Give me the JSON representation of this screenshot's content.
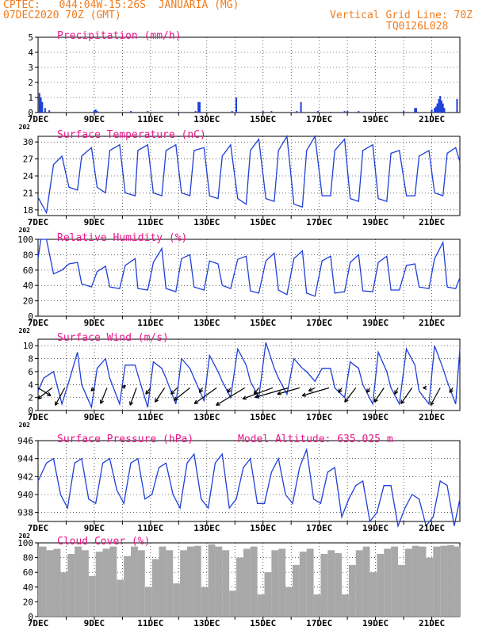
{
  "header": {
    "line1": "CPTEC:   044:04W-15:26S  JANUARIA (MG)",
    "line2": "07DEC2020 70Z (GMT)",
    "grid_note": "Vertical Grid Line: 70Z",
    "run_code": "TQ0126L028"
  },
  "colors": {
    "header": "#f07c1e",
    "panel_title": "#e8178a",
    "series": "#1f3fd8",
    "cloud": "#a8a8a8",
    "vector": "#000000"
  },
  "x_axis": {
    "first_day": 7,
    "last_day": 22,
    "tick_labels": [
      "7DEC",
      "9DEC",
      "11DEC",
      "13DEC",
      "15DEC",
      "17DEC",
      "19DEC",
      "21DEC"
    ],
    "tick_days": [
      7,
      9,
      11,
      13,
      15,
      17,
      19,
      21
    ],
    "year_fragment": "202"
  },
  "model_altitude": "Model Altitude: 635.025 m",
  "chart_data": [
    {
      "type": "bar",
      "title": "Precipitation (mm/h)",
      "yticks": [
        0,
        1,
        2,
        3,
        4,
        5
      ],
      "ylim": [
        0,
        5
      ],
      "points": [
        [
          7.05,
          1.3
        ],
        [
          7.1,
          1.0
        ],
        [
          7.15,
          0.7
        ],
        [
          7.25,
          0.3
        ],
        [
          7.4,
          0.15
        ],
        [
          9.0,
          0.15
        ],
        [
          9.05,
          0.2
        ],
        [
          9.1,
          0.1
        ],
        [
          10.3,
          0.1
        ],
        [
          10.9,
          0.1
        ],
        [
          12.0,
          0.05
        ],
        [
          12.6,
          0.1
        ],
        [
          12.7,
          0.7
        ],
        [
          12.75,
          0.7
        ],
        [
          13.9,
          0.1
        ],
        [
          14.05,
          1.0
        ],
        [
          15.0,
          0.1
        ],
        [
          15.3,
          0.1
        ],
        [
          16.2,
          0.1
        ],
        [
          16.35,
          0.7
        ],
        [
          16.95,
          0.1
        ],
        [
          17.4,
          0.05
        ],
        [
          17.9,
          0.1
        ],
        [
          18.0,
          0.1
        ],
        [
          18.4,
          0.1
        ],
        [
          19.1,
          0.05
        ],
        [
          20.0,
          0.1
        ],
        [
          20.4,
          0.3
        ],
        [
          20.45,
          0.3
        ],
        [
          21.0,
          0.2
        ],
        [
          21.1,
          0.3
        ],
        [
          21.15,
          0.4
        ],
        [
          21.2,
          0.6
        ],
        [
          21.25,
          0.9
        ],
        [
          21.3,
          1.1
        ],
        [
          21.35,
          0.8
        ],
        [
          21.4,
          0.6
        ],
        [
          21.45,
          0.3
        ],
        [
          21.9,
          0.9
        ]
      ]
    },
    {
      "type": "line",
      "title": "Surface Temperature (nC)",
      "yticks": [
        18,
        21,
        24,
        27,
        30
      ],
      "ylim": [
        17,
        31
      ],
      "x": [
        7.0,
        7.3,
        7.55,
        7.85,
        8.1,
        8.4,
        8.55,
        8.9,
        9.1,
        9.4,
        9.55,
        9.9,
        10.1,
        10.45,
        10.55,
        10.9,
        11.1,
        11.4,
        11.55,
        11.9,
        12.1,
        12.4,
        12.55,
        12.9,
        13.1,
        13.4,
        13.55,
        13.85,
        14.1,
        14.4,
        14.55,
        14.85,
        15.1,
        15.4,
        15.55,
        15.85,
        16.1,
        16.4,
        16.55,
        16.85,
        17.1,
        17.4,
        17.55,
        17.9,
        18.1,
        18.4,
        18.55,
        18.9,
        19.1,
        19.4,
        19.55,
        19.85,
        20.1,
        20.4,
        20.55,
        20.9,
        21.1,
        21.4,
        21.55,
        21.85,
        22.0
      ],
      "series": [
        {
          "values": [
            20.2,
            17.5,
            26.0,
            27.5,
            22.0,
            21.5,
            27.5,
            29.0,
            22.0,
            21.0,
            28.5,
            29.5,
            21.0,
            20.5,
            28.5,
            29.5,
            21.0,
            20.5,
            28.5,
            29.5,
            21.0,
            20.5,
            28.5,
            29.0,
            20.5,
            20.0,
            27.5,
            29.5,
            20.0,
            19.0,
            28.5,
            30.5,
            20.0,
            19.5,
            28.5,
            31.0,
            19.0,
            18.5,
            28.5,
            31.0,
            20.5,
            20.5,
            28.5,
            30.5,
            20.0,
            19.5,
            28.5,
            29.5,
            20.0,
            19.5,
            28.0,
            28.5,
            20.5,
            20.5,
            27.5,
            28.5,
            21.0,
            20.5,
            28.0,
            29.0,
            26.5
          ]
        }
      ]
    },
    {
      "type": "line",
      "title": "Relative Humidity (%)",
      "yticks": [
        0,
        20,
        40,
        60,
        80,
        100
      ],
      "ylim": [
        0,
        100
      ],
      "x": [
        7.0,
        7.1,
        7.3,
        7.55,
        7.85,
        8.1,
        8.4,
        8.55,
        8.9,
        9.1,
        9.4,
        9.55,
        9.9,
        10.1,
        10.45,
        10.55,
        10.9,
        11.1,
        11.4,
        11.55,
        11.9,
        12.1,
        12.4,
        12.55,
        12.9,
        13.1,
        13.4,
        13.55,
        13.85,
        14.1,
        14.4,
        14.55,
        14.85,
        15.1,
        15.4,
        15.55,
        15.85,
        16.1,
        16.4,
        16.55,
        16.85,
        17.1,
        17.4,
        17.55,
        17.9,
        18.1,
        18.4,
        18.55,
        18.9,
        19.1,
        19.4,
        19.55,
        19.85,
        20.1,
        20.4,
        20.55,
        20.9,
        21.1,
        21.4,
        21.55,
        21.85,
        22.0
      ],
      "series": [
        {
          "values": [
            75,
            100,
            100,
            55,
            60,
            68,
            70,
            42,
            38,
            58,
            65,
            38,
            36,
            66,
            75,
            36,
            34,
            70,
            88,
            36,
            32,
            75,
            80,
            38,
            34,
            72,
            68,
            40,
            36,
            74,
            78,
            33,
            30,
            72,
            82,
            34,
            28,
            75,
            85,
            30,
            26,
            72,
            78,
            30,
            32,
            70,
            80,
            33,
            32,
            70,
            78,
            34,
            34,
            66,
            68,
            38,
            36,
            75,
            96,
            38,
            36,
            50
          ]
        }
      ]
    },
    {
      "type": "line",
      "title": "Surface Wind (m/s)",
      "yticks": [
        0,
        2,
        4,
        6,
        8,
        10
      ],
      "ylim": [
        0,
        11
      ],
      "x": [
        7.0,
        7.2,
        7.55,
        7.85,
        8.1,
        8.4,
        8.55,
        8.9,
        9.1,
        9.4,
        9.55,
        9.9,
        10.1,
        10.45,
        10.55,
        10.9,
        11.1,
        11.4,
        11.55,
        11.9,
        12.1,
        12.4,
        12.55,
        12.9,
        13.1,
        13.4,
        13.55,
        13.85,
        14.1,
        14.4,
        14.55,
        14.85,
        15.1,
        15.4,
        15.55,
        15.85,
        16.1,
        16.4,
        16.55,
        16.85,
        17.1,
        17.4,
        17.55,
        17.9,
        18.1,
        18.4,
        18.55,
        18.9,
        19.1,
        19.4,
        19.55,
        19.85,
        20.1,
        20.4,
        20.55,
        20.9,
        21.1,
        21.4,
        21.55,
        21.85,
        22.0
      ],
      "series": [
        {
          "values": [
            3.0,
            5.0,
            6.0,
            1.0,
            4.5,
            9.0,
            4.0,
            0.5,
            6.5,
            8.0,
            5.0,
            1.0,
            7.0,
            7.0,
            5.5,
            0.5,
            7.5,
            6.5,
            5.0,
            1.0,
            8.0,
            6.5,
            5.0,
            1.5,
            8.5,
            6.0,
            4.5,
            2.0,
            9.5,
            7.0,
            4.5,
            2.0,
            10.5,
            6.5,
            5.0,
            2.5,
            8.0,
            6.5,
            6.0,
            4.5,
            6.5,
            6.5,
            3.5,
            2.0,
            7.5,
            6.5,
            4.0,
            1.0,
            9.0,
            6.0,
            3.5,
            1.0,
            9.5,
            7.0,
            3.0,
            1.0,
            10.0,
            6.5,
            4.5,
            1.0,
            9.5
          ]
        }
      ],
      "vectors": [
        [
          7.0,
          3.5,
          16,
          -10
        ],
        [
          7.5,
          3.5,
          -18,
          -14
        ],
        [
          7.95,
          3.5,
          -12,
          -22
        ],
        [
          9.0,
          3.5,
          -4,
          -4
        ],
        [
          9.45,
          3.5,
          -8,
          -20
        ],
        [
          10.0,
          3.5,
          4,
          3
        ],
        [
          10.5,
          3.5,
          -8,
          -22
        ],
        [
          11.0,
          3.5,
          -6,
          -8
        ],
        [
          11.5,
          3.5,
          -12,
          -18
        ],
        [
          11.95,
          3.5,
          -8,
          -8
        ],
        [
          12.4,
          3.5,
          -20,
          -16
        ],
        [
          12.85,
          3.5,
          -4,
          -6
        ],
        [
          13.35,
          3.5,
          -28,
          -20
        ],
        [
          13.85,
          3.5,
          -4,
          -6
        ],
        [
          14.35,
          3.5,
          -36,
          -22
        ],
        [
          14.85,
          3.5,
          -6,
          -8
        ],
        [
          15.35,
          3.5,
          -38,
          -14
        ],
        [
          15.9,
          3.5,
          -42,
          -12
        ],
        [
          16.3,
          3.5,
          -28,
          -8
        ],
        [
          16.85,
          3.5,
          -8,
          -4
        ],
        [
          17.35,
          3.5,
          -34,
          -10
        ],
        [
          17.8,
          3.5,
          -4,
          -6
        ],
        [
          18.3,
          3.5,
          -14,
          -18
        ],
        [
          18.8,
          3.5,
          -4,
          -6
        ],
        [
          19.3,
          3.5,
          -12,
          -18
        ],
        [
          19.8,
          3.5,
          -4,
          -8
        ],
        [
          20.3,
          3.5,
          -14,
          -20
        ],
        [
          20.8,
          3.5,
          -4,
          0
        ],
        [
          21.3,
          3.5,
          -12,
          -22
        ],
        [
          21.75,
          3.5,
          -4,
          -6
        ]
      ]
    },
    {
      "type": "line",
      "title": "Surface Pressure (hPa)",
      "yticks": [
        938,
        940,
        942,
        944,
        946
      ],
      "ylim": [
        937,
        946
      ],
      "x": [
        7.0,
        7.3,
        7.55,
        7.8,
        8.05,
        8.3,
        8.55,
        8.8,
        9.05,
        9.3,
        9.55,
        9.8,
        10.05,
        10.3,
        10.55,
        10.8,
        11.05,
        11.3,
        11.55,
        11.8,
        12.05,
        12.3,
        12.55,
        12.8,
        13.05,
        13.3,
        13.55,
        13.8,
        14.05,
        14.3,
        14.55,
        14.8,
        15.05,
        15.3,
        15.55,
        15.8,
        16.05,
        16.3,
        16.55,
        16.8,
        17.05,
        17.3,
        17.55,
        17.8,
        18.05,
        18.3,
        18.55,
        18.8,
        19.05,
        19.3,
        19.55,
        19.8,
        20.05,
        20.3,
        20.55,
        20.8,
        21.05,
        21.3,
        21.55,
        21.8,
        22.0
      ],
      "series": [
        {
          "values": [
            941.5,
            943.5,
            944.0,
            940.0,
            938.5,
            943.5,
            944.0,
            939.5,
            939.0,
            943.5,
            944.0,
            940.5,
            939.0,
            943.5,
            944.0,
            939.5,
            940.0,
            943.0,
            943.5,
            940.0,
            938.5,
            943.5,
            944.5,
            939.5,
            938.5,
            943.5,
            944.5,
            938.5,
            939.5,
            943.0,
            944.0,
            939.0,
            939.0,
            942.5,
            944.0,
            940.0,
            939.0,
            943.0,
            945.0,
            939.5,
            939.0,
            942.5,
            943.0,
            937.5,
            939.5,
            941.0,
            941.5,
            937.0,
            938.0,
            941.0,
            941.0,
            936.5,
            938.5,
            940.0,
            939.5,
            936.5,
            937.5,
            941.5,
            941.0,
            936.5,
            939.5
          ]
        }
      ]
    },
    {
      "type": "bar",
      "title": "Cloud Cover (%)",
      "yticks": [
        0,
        20,
        40,
        60,
        80,
        100
      ],
      "ylim": [
        0,
        100
      ],
      "x": [
        7.0,
        7.3,
        7.55,
        7.8,
        8.05,
        8.3,
        8.55,
        8.8,
        9.05,
        9.3,
        9.55,
        9.8,
        10.05,
        10.3,
        10.55,
        10.8,
        11.05,
        11.3,
        11.55,
        11.8,
        12.05,
        12.3,
        12.55,
        12.8,
        13.05,
        13.3,
        13.55,
        13.8,
        14.05,
        14.3,
        14.55,
        14.8,
        15.05,
        15.3,
        15.55,
        15.8,
        16.05,
        16.3,
        16.55,
        16.8,
        17.05,
        17.3,
        17.55,
        17.8,
        18.05,
        18.3,
        18.55,
        18.8,
        19.05,
        19.3,
        19.55,
        19.8,
        20.05,
        20.3,
        20.55,
        20.8,
        21.05,
        21.3,
        21.55,
        21.8,
        22.0
      ],
      "series": [
        {
          "values": [
            95,
            90,
            92,
            60,
            85,
            95,
            90,
            55,
            88,
            92,
            95,
            50,
            82,
            95,
            90,
            40,
            78,
            95,
            90,
            45,
            90,
            95,
            96,
            40,
            98,
            95,
            90,
            35,
            80,
            92,
            95,
            30,
            60,
            90,
            92,
            40,
            70,
            88,
            92,
            30,
            85,
            90,
            86,
            30,
            70,
            90,
            95,
            60,
            85,
            92,
            95,
            70,
            92,
            96,
            95,
            80,
            95,
            96,
            97,
            95,
            96
          ]
        }
      ]
    }
  ]
}
